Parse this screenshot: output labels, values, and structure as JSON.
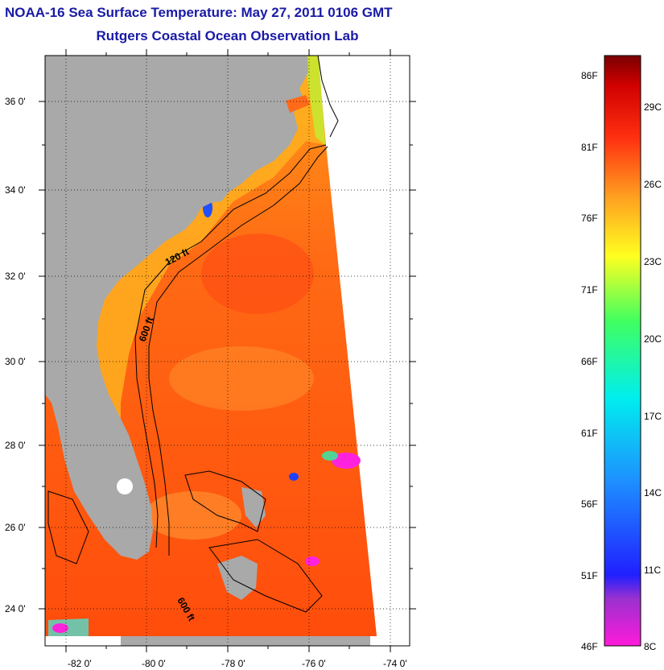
{
  "title": "NOAA-16 Sea Surface Temperature:  May 27, 2011 0106 GMT",
  "subtitle": "Rutgers Coastal Ocean Observation Lab",
  "lat_labels": [
    "36 0'",
    "34 0'",
    "32 0'",
    "30 0'",
    "28 0'",
    "26 0'",
    "24 0'"
  ],
  "lon_labels": [
    "-82 0'",
    "-80 0'",
    "-78 0'",
    "-76 0'",
    "-74 0'"
  ],
  "contour_labels": [
    "120 ft",
    "600 ft",
    "600 ft"
  ],
  "colorbar": {
    "fahrenheit": [
      "86F",
      "81F",
      "76F",
      "71F",
      "66F",
      "61F",
      "56F",
      "51F",
      "46F"
    ],
    "celsius": [
      "29C",
      "26C",
      "23C",
      "20C",
      "17C",
      "14C",
      "11C",
      "8C"
    ]
  },
  "colors": {
    "title": "#1a1aa6",
    "land": "#a9a9a9",
    "warm_sea": "#ff5a10",
    "shelf_sea": "#ff9a20"
  }
}
